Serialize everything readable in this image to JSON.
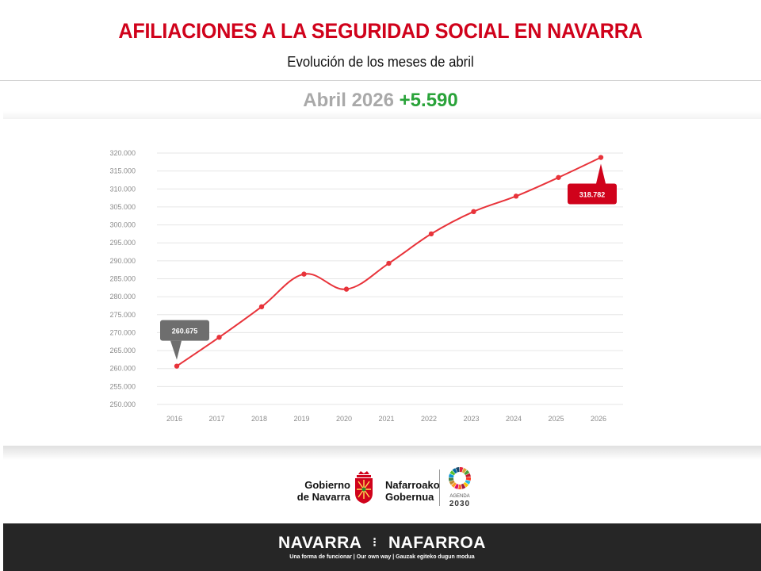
{
  "header": {
    "title": "AFILIACIONES A LA SEGURIDAD SOCIAL EN NAVARRA",
    "subtitle": "Evolución de los meses de abril"
  },
  "headline": {
    "period": "Abril 2026",
    "change": "+5.590"
  },
  "colors": {
    "title": "#d0021b",
    "line": "#e8333a",
    "positive": "#2aa33a",
    "muted": "#a9a9a9"
  },
  "chart_data": {
    "type": "line",
    "x": [
      "2016",
      "2017",
      "2018",
      "2019",
      "2020",
      "2021",
      "2022",
      "2023",
      "2024",
      "2025",
      "2026"
    ],
    "series": [
      {
        "values": [
          260675,
          268700,
          277200,
          286300,
          282100,
          289300,
          297500,
          303700,
          308000,
          313200,
          318782
        ]
      }
    ],
    "ylim": [
      250000,
      320000
    ],
    "yticks": [
      320000,
      315000,
      310000,
      305000,
      300000,
      295000,
      290000,
      285000,
      280000,
      275000,
      270000,
      265000,
      260000,
      255000,
      250000
    ],
    "ytick_labels": [
      "320.000",
      "315.000",
      "310.000",
      "305.000",
      "300.000",
      "295.000",
      "290.000",
      "285.000",
      "280.000",
      "275.000",
      "270.000",
      "265.000",
      "260.000",
      "255.000",
      "250.000"
    ],
    "grid": true,
    "callouts": [
      {
        "index": 0,
        "label": "260.675",
        "color": "#6e6e6e"
      },
      {
        "index": 10,
        "label": "318.782",
        "color": "#d0021b"
      }
    ]
  },
  "logos": {
    "gobierno_left": [
      "Gobierno",
      "de Navarra"
    ],
    "gobierno_right": [
      "Nafarroako",
      "Gobernua"
    ],
    "agenda_label": "AGENDA",
    "agenda_year": "2030"
  },
  "footer": {
    "brand_left": "NAVARRA",
    "brand_sep": "⁝",
    "brand_right": "NAFARROA",
    "tagline": "Una forma de funcionar | Our own way | Gauzak egiteko dugun modua"
  }
}
